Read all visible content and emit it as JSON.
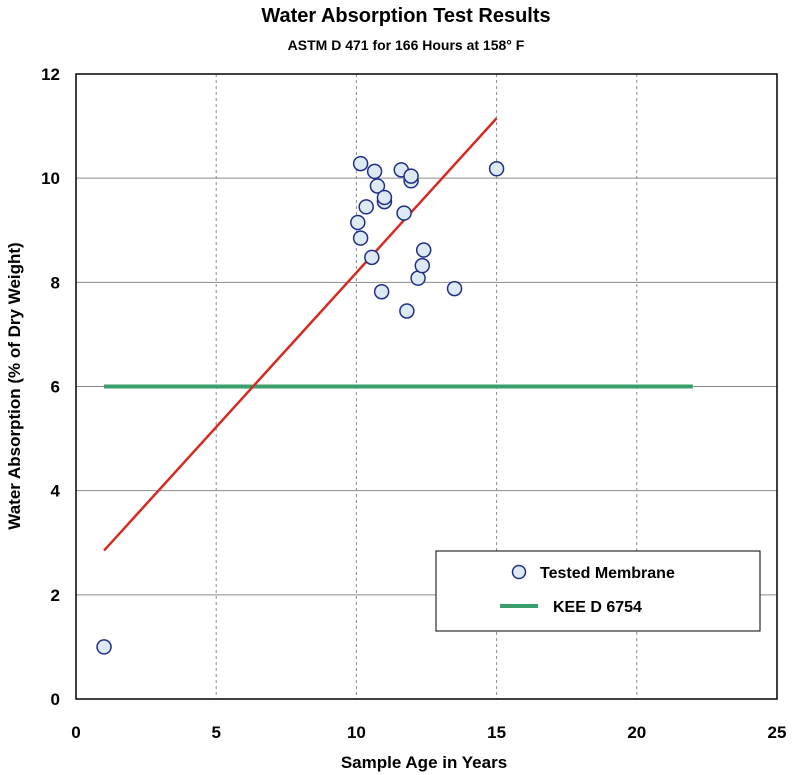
{
  "chart_data": {
    "type": "scatter",
    "title": "Water Absorption Test Results",
    "subtitle": "ASTM D 471 for 166 Hours at 158° F",
    "xlabel": "Sample Age in Years",
    "ylabel": "Water Absorption (% of Dry Weight)",
    "xlim": [
      0,
      25
    ],
    "ylim": [
      0,
      12
    ],
    "xticks": [
      0,
      5,
      10,
      15,
      20,
      25
    ],
    "yticks": [
      0,
      2,
      4,
      6,
      8,
      10,
      12
    ],
    "x_grid": "dashed vertical",
    "y_grid": "solid horizontal",
    "legend_position": "bottom-right",
    "series": [
      {
        "name": "Tested Membrane",
        "kind": "points",
        "color": "#dde9f3",
        "edge_color": "#1f2f88",
        "points": [
          [
            1.0,
            1.0
          ],
          [
            10.15,
            10.28
          ],
          [
            10.05,
            9.15
          ],
          [
            10.15,
            8.85
          ],
          [
            10.35,
            9.45
          ],
          [
            10.55,
            8.48
          ],
          [
            10.65,
            10.13
          ],
          [
            10.75,
            9.85
          ],
          [
            10.9,
            7.82
          ],
          [
            11.0,
            9.55
          ],
          [
            11.0,
            9.63
          ],
          [
            11.6,
            10.16
          ],
          [
            11.7,
            9.33
          ],
          [
            11.8,
            7.45
          ],
          [
            11.95,
            9.95
          ],
          [
            11.95,
            10.04
          ],
          [
            12.2,
            8.08
          ],
          [
            12.35,
            8.32
          ],
          [
            12.4,
            8.62
          ],
          [
            13.5,
            7.88
          ],
          [
            15.0,
            10.18
          ]
        ]
      },
      {
        "name": "KEE D 6754",
        "kind": "line",
        "color": "#3a9e6e",
        "x": [
          1,
          22
        ],
        "y": [
          6,
          6
        ]
      },
      {
        "name": "",
        "kind": "trend",
        "color": "#d42a20",
        "x": [
          1,
          15
        ],
        "y": [
          2.85,
          11.15
        ]
      }
    ]
  }
}
